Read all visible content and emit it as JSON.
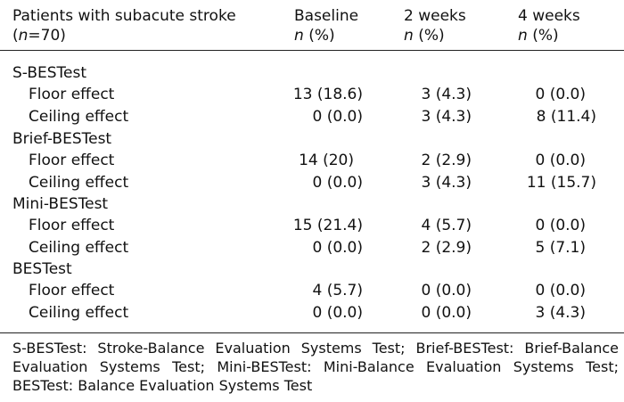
{
  "header": {
    "col0_line1": "Patients with subacute stroke",
    "col0_line2_open": "(",
    "col0_line2_n": "n",
    "col0_line2_rest": "=70)",
    "col1_line1": "Baseline",
    "col2_line1": "2 weeks",
    "col3_line1": "4 weeks",
    "n_label": "n",
    "pct_label": "(%)"
  },
  "groups": [
    {
      "title": "S-BESTest",
      "rows": [
        {
          "label": "Floor effect",
          "baseline": "13 (18.6)",
          "w2": "3 (4.3)",
          "w4": "0 (0.0)"
        },
        {
          "label": "Ceiling effect",
          "baseline": "0 (0.0)",
          "w2": "3 (4.3)",
          "w4": "8 (11.4)"
        }
      ]
    },
    {
      "title": "Brief-BESTest",
      "rows": [
        {
          "label": "Floor effect",
          "baseline": "14 (20)",
          "w2": "2 (2.9)",
          "w4": "0 (0.0)"
        },
        {
          "label": "Ceiling effect",
          "baseline": "0 (0.0)",
          "w2": "3 (4.3)",
          "w4": "11 (15.7)"
        }
      ]
    },
    {
      "title": "Mini-BESTest",
      "rows": [
        {
          "label": "Floor effect",
          "baseline": "15 (21.4)",
          "w2": "4 (5.7)",
          "w4": "0 (0.0)"
        },
        {
          "label": "Ceiling effect",
          "baseline": "0 (0.0)",
          "w2": "2 (2.9)",
          "w4": "5 (7.1)"
        }
      ]
    },
    {
      "title": "BESTest",
      "rows": [
        {
          "label": "Floor effect",
          "baseline": "4 (5.7)",
          "w2": "0 (0.0)",
          "w4": "0 (0.0)"
        },
        {
          "label": "Ceiling effect",
          "baseline": "0 (0.0)",
          "w2": "0 (0.0)",
          "w4": "3 (4.3)"
        }
      ]
    }
  ],
  "footnote": "S-BESTest: Stroke-Balance Evaluation Systems Test; Brief-BESTest: Brief-Balance Evaluation Systems Test; Mini-BESTest: Mini-Balance Evaluation Systems Test; BESTest: Balance Evaluation Systems Test"
}
